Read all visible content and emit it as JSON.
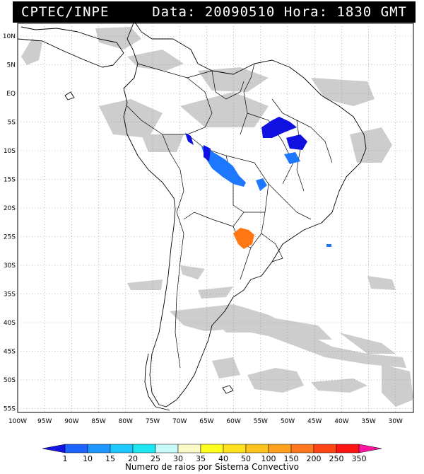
{
  "header": {
    "org": "CPTEC/INPE",
    "date_label": "Data:",
    "date_value": "20090510",
    "time_label": "Hora:",
    "time_value": "1830 GMT"
  },
  "map": {
    "lat_labels": [
      "10N",
      "5N",
      "EQ",
      "5S",
      "10S",
      "15S",
      "20S",
      "25S",
      "30S",
      "35S",
      "40S",
      "45S",
      "50S",
      "55S"
    ],
    "lon_labels": [
      "100W",
      "95W",
      "90W",
      "85W",
      "80W",
      "75W",
      "70W",
      "65W",
      "60W",
      "55W",
      "50W",
      "45W",
      "40W",
      "35W",
      "30W"
    ],
    "grid": "dotted",
    "colors": {
      "land_outline": "#000000",
      "cloud": "#c8c8c8",
      "blue_dark": "#1010e0",
      "blue_mid": "#1e78ff",
      "orange": "#ff7814"
    }
  },
  "legend": {
    "labels": [
      "1",
      "10",
      "15",
      "20",
      "25",
      "30",
      "35",
      "40",
      "50",
      "100",
      "150",
      "200",
      "250",
      "350"
    ],
    "colors": [
      "#1414e6",
      "#1e64ff",
      "#1e96ff",
      "#1ec8ff",
      "#1ee6f0",
      "#c8fafa",
      "#fafac8",
      "#ffff1e",
      "#ffe11e",
      "#ffc31e",
      "#ffa01e",
      "#ff781e",
      "#ff4614",
      "#ff1414",
      "#ff14a0"
    ],
    "title": "Numero de raios por Sistema Convectivo"
  }
}
